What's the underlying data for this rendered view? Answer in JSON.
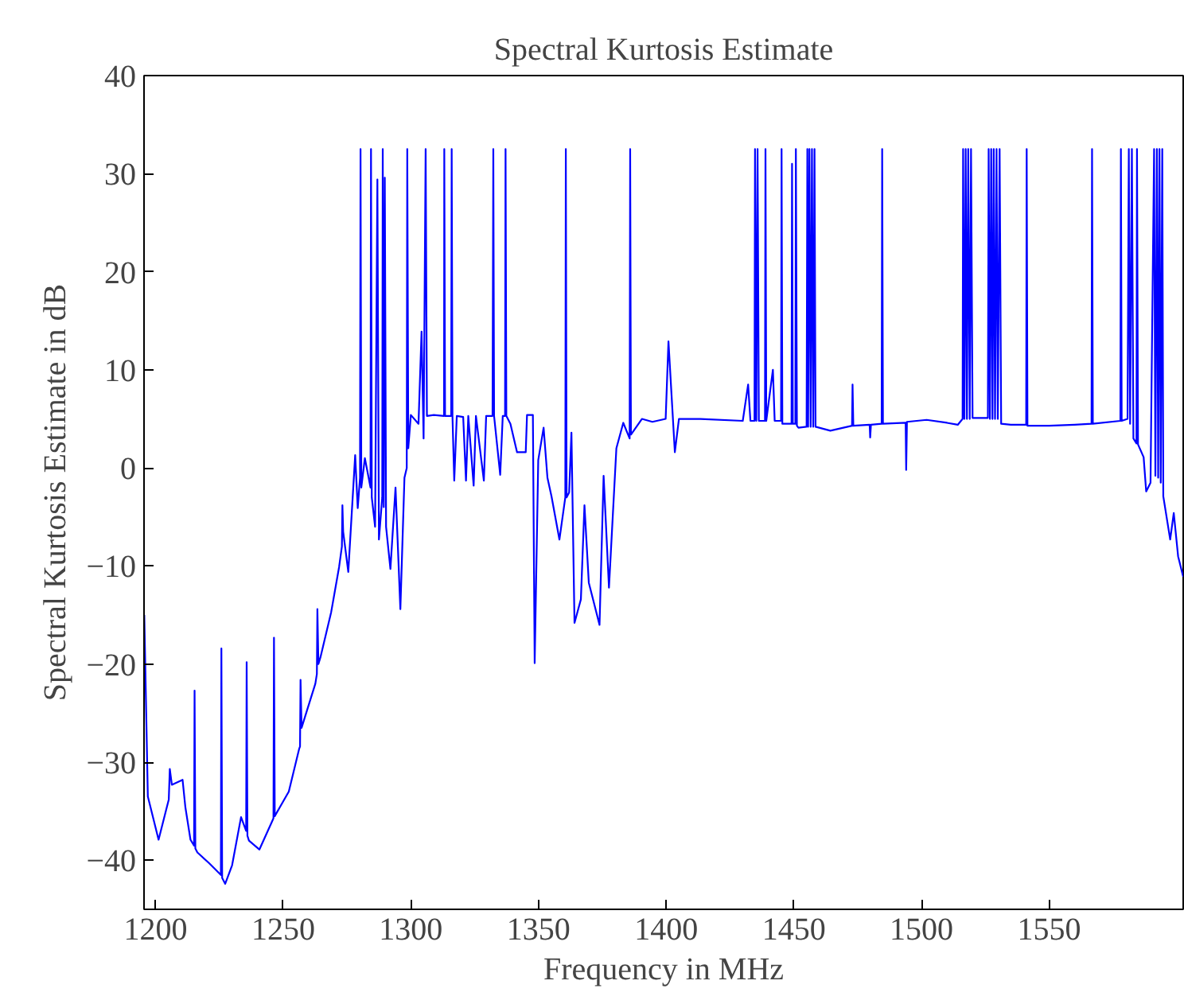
{
  "chart_data": {
    "type": "line",
    "title": "Spectral Kurtosis Estimate",
    "xlabel": "Frequency in MHz",
    "ylabel": "Spectral Kurtosis Estimate in dB",
    "xlim": [
      1195.5,
      1602.5
    ],
    "ylim": [
      -45,
      40
    ],
    "xticks": [
      1200,
      1250,
      1300,
      1350,
      1400,
      1450,
      1500,
      1550
    ],
    "yticks": [
      -40,
      -30,
      -20,
      -10,
      0,
      10,
      20,
      30,
      40
    ],
    "grid": false,
    "marker": "none",
    "line_style": "solid",
    "series": [
      {
        "color": "#0000ff",
        "x": [
          1195.6,
          1197,
          1201.2,
          1205.2,
          1205.6,
          1206.4,
          1210.6,
          1211.7,
          1213.7,
          1215.1,
          1215.3,
          1215.6,
          1216.4,
          1221,
          1225.6,
          1225.8,
          1226.1,
          1227.3,
          1230,
          1233.5,
          1235.5,
          1235.7,
          1236,
          1236.6,
          1240.7,
          1245.9,
          1246.2,
          1246.4,
          1246.7,
          1252.2,
          1256.3,
          1256.6,
          1256.8,
          1257.2,
          1262.6,
          1263.2,
          1263.4,
          1263.8,
          1264.6,
          1268.8,
          1271.9,
          1273,
          1273.2,
          1273.5,
          1275.5,
          1278.2,
          1279.2,
          1280.1,
          1280.3,
          1280.6,
          1282,
          1284.2,
          1284.4,
          1284.7,
          1286,
          1286.9,
          1287.5,
          1288.8,
          1289.0,
          1289.4,
          1289.8,
          1290.3,
          1292,
          1294,
          1295.9,
          1297.5,
          1298.4,
          1298.6,
          1299,
          1300,
          1303,
          1304.2,
          1305,
          1305.8,
          1306.3,
          1309,
          1313,
          1313.1,
          1313.4,
          1315.8,
          1316.0,
          1316.3,
          1317,
          1318,
          1320.5,
          1321.6,
          1322.5,
          1324.6,
          1325.5,
          1328.6,
          1329.5,
          1332,
          1332.3,
          1332.6,
          1335,
          1336,
          1336.9,
          1337.1,
          1337.4,
          1339,
          1341.6,
          1345,
          1345.5,
          1347.8,
          1348.5,
          1349.9,
          1352,
          1353.5,
          1355.1,
          1358.2,
          1360.5,
          1360.7,
          1361,
          1362,
          1362.9,
          1364.1,
          1366.6,
          1368,
          1369.7,
          1373.9,
          1375.5,
          1377.6,
          1380.5,
          1383.2,
          1385.7,
          1385.9,
          1386.2,
          1390.5,
          1394.6,
          1399.8,
          1400.9,
          1403.4,
          1405,
          1413.4,
          1430,
          1432.1,
          1433,
          1434.6,
          1434.8,
          1435.3,
          1435.8,
          1436.3,
          1438.7,
          1438.9,
          1439.2,
          1441.8,
          1442.5,
          1445,
          1445.2,
          1445.5,
          1449.1,
          1449.3,
          1449.6,
          1450.6,
          1450.8,
          1451.2,
          1451.8,
          1455,
          1455.3,
          1455.6,
          1456.1,
          1456.6,
          1457.1,
          1457.6,
          1458.1,
          1458.5,
          1464.3,
          1472.8,
          1473,
          1473.3,
          1479.7,
          1479.9,
          1480.2,
          1484.4,
          1484.6,
          1484.9,
          1493.8,
          1494,
          1494.3,
          1502,
          1510,
          1514.2,
          1516.1,
          1516.3,
          1516.8,
          1517.3,
          1517.8,
          1518.3,
          1518.9,
          1519.4,
          1520,
          1526,
          1526.3,
          1526.8,
          1527.3,
          1527.8,
          1528.3,
          1528.8,
          1529.4,
          1529.9,
          1530.6,
          1531.2,
          1535,
          1541,
          1541.2,
          1541.5,
          1550,
          1560,
          1566.6,
          1566.8,
          1567.1,
          1577.9,
          1578.1,
          1578.4,
          1580.7,
          1581.2,
          1581.7,
          1582.4,
          1583,
          1584.2,
          1584.4,
          1584.8,
          1587,
          1588,
          1589.7,
          1591.1,
          1591.6,
          1592.2,
          1592.7,
          1593.2,
          1593.7,
          1594.3,
          1594.7,
          1597.4,
          1598.8,
          1600.5,
          1602.5
        ],
        "values": [
          -15,
          -33.5,
          -37.9,
          -33.8,
          -30.7,
          -32.3,
          -31.8,
          -34.6,
          -37.9,
          -38.5,
          -22.7,
          -38.8,
          -39.2,
          -40.3,
          -41.5,
          -18.4,
          -41.8,
          -42.4,
          -40.5,
          -35.6,
          -37.0,
          -19.8,
          -37.5,
          -38.0,
          -38.9,
          -35.9,
          -35.7,
          -17.3,
          -35.5,
          -33.0,
          -28.6,
          -28.4,
          -21.6,
          -26.5,
          -22.0,
          -21,
          -14.4,
          -20,
          -19.3,
          -14.7,
          -10.1,
          -8,
          -3.8,
          -6.5,
          -10.6,
          1.3,
          -4.1,
          -1,
          32.5,
          -2,
          1,
          -2,
          32.5,
          -3,
          -6,
          29.4,
          -7.3,
          -3,
          32.5,
          -4,
          29.6,
          -6,
          -10.3,
          -2,
          -14.4,
          -1,
          0,
          32.5,
          2,
          5.4,
          4.5,
          13.9,
          3,
          32.5,
          5.3,
          5.4,
          5.3,
          32.5,
          5.3,
          5.3,
          32.5,
          5.3,
          -1.3,
          5.3,
          5.2,
          -1.3,
          5.3,
          -1.8,
          5.3,
          -1.3,
          5.3,
          5.3,
          32.5,
          5.3,
          -0.7,
          5.3,
          5.3,
          32.5,
          5.3,
          4.5,
          1.6,
          1.6,
          5.4,
          5.4,
          -19.9,
          0.8,
          4.1,
          -1,
          -2.9,
          -7.3,
          -3,
          32.5,
          -3,
          -2.5,
          3.6,
          -15.8,
          -13.4,
          -3.8,
          -11.7,
          -16.0,
          -0.8,
          -12.2,
          2.0,
          4.6,
          3,
          32.5,
          3.4,
          5.0,
          4.7,
          5.0,
          12.9,
          1.6,
          5.0,
          5.0,
          4.8,
          8.5,
          4.8,
          4.8,
          32.5,
          4.8,
          32.5,
          4.8,
          4.8,
          32.5,
          4.8,
          10,
          4.8,
          4.8,
          32.5,
          4.5,
          4.5,
          31,
          4.5,
          4.5,
          32.5,
          4.3,
          4.1,
          4.2,
          32.5,
          4.2,
          32.5,
          4.2,
          32.5,
          4.2,
          32.5,
          4.2,
          3.8,
          4.3,
          8.5,
          4.3,
          4.4,
          3.1,
          4.4,
          4.5,
          32.5,
          4.5,
          4.6,
          -0.2,
          4.7,
          4.9,
          4.6,
          4.4,
          5.0,
          32.5,
          5.0,
          32.5,
          5.0,
          32.5,
          5.0,
          32.5,
          5.1,
          5.1,
          32.5,
          5.0,
          32.5,
          5.0,
          32.5,
          5.0,
          32.5,
          5.0,
          32.5,
          4.5,
          4.4,
          4.4,
          32.5,
          4.3,
          4.3,
          4.4,
          4.5,
          32.5,
          4.5,
          4.8,
          32.5,
          4.8,
          5.0,
          32.5,
          4.5,
          32.5,
          3,
          2.5,
          32.5,
          2.4,
          1.1,
          -2.4,
          -1.5,
          32.5,
          -0.8,
          32.5,
          -1,
          32.5,
          -1.5,
          32.5,
          -2.9,
          -7.3,
          -4.6,
          -9.0,
          -11.1
        ]
      }
    ]
  }
}
